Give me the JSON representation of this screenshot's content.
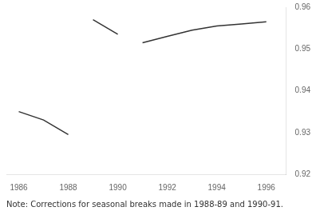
{
  "chart_data": {
    "type": "line",
    "series": [
      {
        "x": [
          1986.0,
          1987.0,
          1988.0
        ],
        "values": [
          0.935,
          0.933,
          0.9295
        ],
        "color": "#333333"
      },
      {
        "x": [
          1989.0,
          1990.0
        ],
        "values": [
          0.957,
          0.9535
        ],
        "color": "#333333"
      },
      {
        "x": [
          1991.0,
          1992.0,
          1993.0,
          1994.0,
          1995.0,
          1996.0
        ],
        "values": [
          0.9515,
          0.953,
          0.9545,
          0.9555,
          0.956,
          0.9565
        ],
        "color": "#333333"
      }
    ],
    "xlim": [
      1985.5,
      1996.8
    ],
    "ylim": [
      0.92,
      0.96
    ],
    "xticks": [
      1986,
      1988,
      1990,
      1992,
      1994,
      1996
    ],
    "yticks": [
      0.92,
      0.93,
      0.94,
      0.95,
      0.96
    ],
    "grid": false,
    "annotation": "Note: Corrections for seasonal breaks made in 1988-89 and 1990-91."
  }
}
